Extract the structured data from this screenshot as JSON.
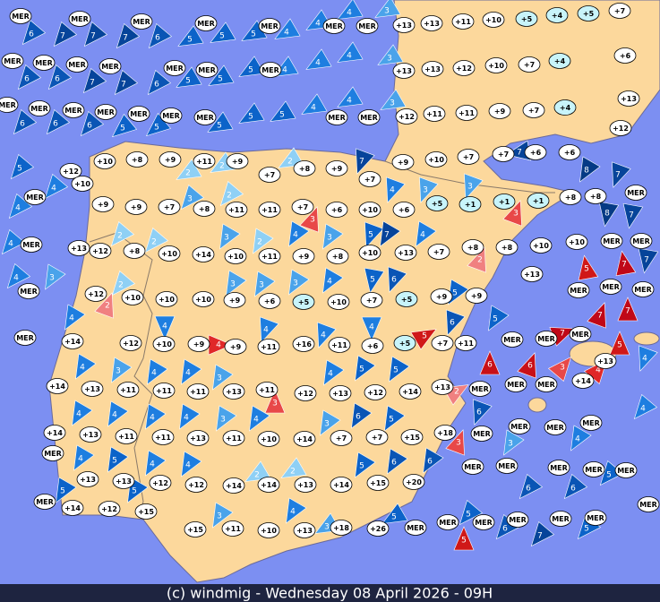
{
  "footer": "(c) windmig - Wednesday 08 April 2026 - 09H",
  "winds": [
    {
      "label": "6",
      "color": "#0a55b5"
    },
    {
      "label": "7",
      "color": "#06449a"
    },
    {
      "label": "7",
      "color": "#06449a"
    },
    {
      "label": "7",
      "color": "#06449a"
    },
    {
      "label": "6",
      "color": "#0a55b5"
    },
    {
      "label": "5",
      "color": "#0c63c9"
    },
    {
      "label": "5",
      "color": "#0c63c9"
    },
    {
      "label": "5",
      "color": "#0c63c9"
    },
    {
      "label": "4",
      "color": "#1e7ee0"
    },
    {
      "label": "4",
      "color": "#1e7ee0"
    },
    {
      "label": "4",
      "color": "#1e7ee0"
    },
    {
      "label": "3",
      "color": "#4aa3ea"
    },
    {
      "label": "6",
      "color": "#0a55b5"
    },
    {
      "label": "6",
      "color": "#0a55b5"
    },
    {
      "label": "7",
      "color": "#06449a"
    },
    {
      "label": "7",
      "color": "#06449a"
    },
    {
      "label": "6",
      "color": "#0a55b5"
    },
    {
      "label": "5",
      "color": "#0c63c9"
    },
    {
      "label": "5",
      "color": "#0c63c9"
    },
    {
      "label": "5",
      "color": "#0c63c9"
    },
    {
      "label": "4",
      "color": "#1e7ee0"
    },
    {
      "label": "4",
      "color": "#1e7ee0"
    },
    {
      "label": "4",
      "color": "#1e7ee0"
    },
    {
      "label": "3",
      "color": "#4aa3ea"
    },
    {
      "label": "6",
      "color": "#0a55b5"
    },
    {
      "label": "6",
      "color": "#0a55b5"
    },
    {
      "label": "6",
      "color": "#0a55b5"
    },
    {
      "label": "5",
      "color": "#0c63c9"
    },
    {
      "label": "5",
      "color": "#0c63c9"
    },
    {
      "label": "5",
      "color": "#0c63c9"
    },
    {
      "label": "5",
      "color": "#0c63c9"
    },
    {
      "label": "5",
      "color": "#0c63c9"
    },
    {
      "label": "4",
      "color": "#1e7ee0"
    },
    {
      "label": "4",
      "color": "#1e7ee0"
    },
    {
      "label": "3",
      "color": "#4aa3ea"
    },
    {
      "label": "5",
      "color": "#0c63c9"
    },
    {
      "label": "4",
      "color": "#1e7ee0"
    },
    {
      "label": "4",
      "color": "#1e7ee0"
    },
    {
      "label": "4",
      "color": "#1e7ee0"
    },
    {
      "label": "4",
      "color": "#1e7ee0"
    },
    {
      "label": "2",
      "color": "#8fd0f5"
    },
    {
      "label": "2",
      "color": "#8fd0f5"
    },
    {
      "label": "2",
      "color": "#8fd0f5"
    },
    {
      "label": "7",
      "color": "#06449a"
    },
    {
      "label": "4",
      "color": "#1e7ee0"
    },
    {
      "label": "3",
      "color": "#4aa3ea"
    },
    {
      "label": "3",
      "color": "#4aa3ea"
    },
    {
      "label": "7",
      "color": "#06449a"
    },
    {
      "label": "8",
      "color": "#053a85"
    },
    {
      "label": "7",
      "color": "#06449a"
    },
    {
      "label": "8",
      "color": "#053a85"
    },
    {
      "label": "7",
      "color": "#06449a"
    },
    {
      "label": "3",
      "color": "#e84848"
    },
    {
      "label": "3",
      "color": "#e84848"
    },
    {
      "label": "3",
      "color": "#4aa3ea"
    },
    {
      "label": "2",
      "color": "#8fd0f5"
    },
    {
      "label": "2",
      "color": "#8fd0f5"
    },
    {
      "label": "2",
      "color": "#8fd0f5"
    },
    {
      "label": "3",
      "color": "#4aa3ea"
    },
    {
      "label": "2",
      "color": "#8fd0f5"
    },
    {
      "label": "4",
      "color": "#1e7ee0"
    },
    {
      "label": "3",
      "color": "#4aa3ea"
    },
    {
      "label": "5",
      "color": "#0c63c9"
    },
    {
      "label": "7",
      "color": "#06449a"
    },
    {
      "label": "4",
      "color": "#1e7ee0"
    },
    {
      "label": "2",
      "color": "#f08080"
    },
    {
      "label": "7",
      "color": "#06449a"
    },
    {
      "label": "7",
      "color": "#c00818"
    },
    {
      "label": "5",
      "color": "#d01818"
    },
    {
      "label": "3",
      "color": "#4aa3ea"
    },
    {
      "label": "2",
      "color": "#f08080"
    },
    {
      "label": "2",
      "color": "#8fd0f5"
    },
    {
      "label": "3",
      "color": "#4aa3ea"
    },
    {
      "label": "3",
      "color": "#4aa3ea"
    },
    {
      "label": "3",
      "color": "#4aa3ea"
    },
    {
      "label": "4",
      "color": "#1e7ee0"
    },
    {
      "label": "5",
      "color": "#0c63c9"
    },
    {
      "label": "6",
      "color": "#0a55b5"
    },
    {
      "label": "5",
      "color": "#0c63c9"
    },
    {
      "label": "5",
      "color": "#0c63c9"
    },
    {
      "label": "4",
      "color": "#1e7ee0"
    },
    {
      "label": "4",
      "color": "#1e7ee0"
    },
    {
      "label": "4",
      "color": "#e02828"
    },
    {
      "label": "4",
      "color": "#1e7ee0"
    },
    {
      "label": "4",
      "color": "#1e7ee0"
    },
    {
      "label": "4",
      "color": "#1e7ee0"
    },
    {
      "label": "5",
      "color": "#d01818"
    },
    {
      "label": "6",
      "color": "#0a55b5"
    },
    {
      "label": "7",
      "color": "#c00818"
    },
    {
      "label": "7",
      "color": "#c00818"
    },
    {
      "label": "7",
      "color": "#c00818"
    },
    {
      "label": "5",
      "color": "#d01818"
    },
    {
      "label": "4",
      "color": "#1e7ee0"
    },
    {
      "label": "6",
      "color": "#c81018"
    },
    {
      "label": "6",
      "color": "#c81018"
    },
    {
      "label": "3",
      "color": "#e84848"
    },
    {
      "label": "4",
      "color": "#e02828"
    },
    {
      "label": "2",
      "color": "#f08080"
    },
    {
      "label": "4",
      "color": "#1e7ee0"
    },
    {
      "label": "3",
      "color": "#4aa3ea"
    },
    {
      "label": "4",
      "color": "#1e7ee0"
    },
    {
      "label": "4",
      "color": "#1e7ee0"
    },
    {
      "label": "3",
      "color": "#4aa3ea"
    },
    {
      "label": "3",
      "color": "#e84848"
    },
    {
      "label": "4",
      "color": "#1e7ee0"
    },
    {
      "label": "5",
      "color": "#0c63c9"
    },
    {
      "label": "5",
      "color": "#0c63c9"
    },
    {
      "label": "6",
      "color": "#0a55b5"
    },
    {
      "label": "4",
      "color": "#1e7ee0"
    },
    {
      "label": "4",
      "color": "#1e7ee0"
    },
    {
      "label": "4",
      "color": "#1e7ee0"
    },
    {
      "label": "4",
      "color": "#1e7ee0"
    },
    {
      "label": "3",
      "color": "#4aa3ea"
    },
    {
      "label": "4",
      "color": "#1e7ee0"
    },
    {
      "label": "3",
      "color": "#4aa3ea"
    },
    {
      "label": "6",
      "color": "#0a55b5"
    },
    {
      "label": "5",
      "color": "#0c63c9"
    },
    {
      "label": "3",
      "color": "#e84848"
    },
    {
      "label": "3",
      "color": "#4aa3ea"
    },
    {
      "label": "4",
      "color": "#1e7ee0"
    },
    {
      "label": "4",
      "color": "#1e7ee0"
    },
    {
      "label": "4",
      "color": "#1e7ee0"
    },
    {
      "label": "5",
      "color": "#0c63c9"
    },
    {
      "label": "4",
      "color": "#1e7ee0"
    },
    {
      "label": "4",
      "color": "#1e7ee0"
    },
    {
      "label": "2",
      "color": "#8fd0f5"
    },
    {
      "label": "2",
      "color": "#8fd0f5"
    },
    {
      "label": "5",
      "color": "#0c63c9"
    },
    {
      "label": "6",
      "color": "#0a55b5"
    },
    {
      "label": "6",
      "color": "#0a55b5"
    },
    {
      "label": "6",
      "color": "#0a55b5"
    },
    {
      "label": "6",
      "color": "#0a55b5"
    },
    {
      "label": "5",
      "color": "#0c63c9"
    },
    {
      "label": "5",
      "color": "#0c63c9"
    },
    {
      "label": "5",
      "color": "#0c63c9"
    },
    {
      "label": "3",
      "color": "#4aa3ea"
    },
    {
      "label": "4",
      "color": "#1e7ee0"
    },
    {
      "label": "3",
      "color": "#4aa3ea"
    },
    {
      "label": "5",
      "color": "#0c63c9"
    },
    {
      "label": "5",
      "color": "#0c63c9"
    },
    {
      "label": "5",
      "color": "#d01818"
    },
    {
      "label": "6",
      "color": "#0a55b5"
    },
    {
      "label": "7",
      "color": "#06449a"
    },
    {
      "label": "5",
      "color": "#0c63c9"
    }
  ],
  "stations": [
    {
      "label": "MER"
    },
    {
      "label": "MER"
    },
    {
      "label": "MER"
    },
    {
      "label": "MER"
    },
    {
      "label": "MER"
    },
    {
      "label": "MER"
    },
    {
      "label": "MER"
    },
    {
      "label": "+13"
    },
    {
      "label": "+13"
    },
    {
      "label": "+11"
    },
    {
      "label": "+10"
    },
    {
      "label": "+5",
      "color": "#c8f4fa"
    },
    {
      "label": "+4",
      "color": "#c8f4fa"
    },
    {
      "label": "+5",
      "color": "#c8f4fa"
    },
    {
      "label": "+7"
    },
    {
      "label": "MER"
    },
    {
      "label": "MER"
    },
    {
      "label": "MER"
    },
    {
      "label": "MER"
    },
    {
      "label": "MER"
    },
    {
      "label": "MER"
    },
    {
      "label": "MER"
    },
    {
      "label": "+13"
    },
    {
      "label": "+13"
    },
    {
      "label": "+12"
    },
    {
      "label": "+10"
    },
    {
      "label": "+7"
    },
    {
      "label": "+4",
      "color": "#c8f4fa"
    },
    {
      "label": "+6"
    },
    {
      "label": "MER"
    },
    {
      "label": "MER"
    },
    {
      "label": "MER"
    },
    {
      "label": "MER"
    },
    {
      "label": "MER"
    },
    {
      "label": "MER"
    },
    {
      "label": "MER"
    },
    {
      "label": "MER"
    },
    {
      "label": "MER"
    },
    {
      "label": "+12"
    },
    {
      "label": "+11"
    },
    {
      "label": "+11"
    },
    {
      "label": "+9"
    },
    {
      "label": "+7"
    },
    {
      "label": "+4",
      "color": "#c8f4fa"
    },
    {
      "label": "+13"
    },
    {
      "label": "+12"
    },
    {
      "label": "+10"
    },
    {
      "label": "+8"
    },
    {
      "label": "+9"
    },
    {
      "label": "+11"
    },
    {
      "label": "+9"
    },
    {
      "label": "+12"
    },
    {
      "label": "+10"
    },
    {
      "label": "+7"
    },
    {
      "label": "+8"
    },
    {
      "label": "+9"
    },
    {
      "label": "+7"
    },
    {
      "label": "+9"
    },
    {
      "label": "+10"
    },
    {
      "label": "+7"
    },
    {
      "label": "+7"
    },
    {
      "label": "+6"
    },
    {
      "label": "+6"
    },
    {
      "label": "+8"
    },
    {
      "label": "MER"
    },
    {
      "label": "+9"
    },
    {
      "label": "+9"
    },
    {
      "label": "+7"
    },
    {
      "label": "+8"
    },
    {
      "label": "+11"
    },
    {
      "label": "+11"
    },
    {
      "label": "+7"
    },
    {
      "label": "+6"
    },
    {
      "label": "+10"
    },
    {
      "label": "+6"
    },
    {
      "label": "+5",
      "color": "#c8f4fa"
    },
    {
      "label": "+1",
      "color": "#c8f4fa"
    },
    {
      "label": "+1",
      "color": "#c8f4fa"
    },
    {
      "label": "+1",
      "color": "#c8f4fa"
    },
    {
      "label": "+8"
    },
    {
      "label": "MER"
    },
    {
      "label": "MER"
    },
    {
      "label": "+13"
    },
    {
      "label": "+12"
    },
    {
      "label": "+8"
    },
    {
      "label": "+10"
    },
    {
      "label": "+14"
    },
    {
      "label": "+10"
    },
    {
      "label": "+11"
    },
    {
      "label": "+9"
    },
    {
      "label": "+8"
    },
    {
      "label": "+10"
    },
    {
      "label": "+13"
    },
    {
      "label": "+7"
    },
    {
      "label": "+8"
    },
    {
      "label": "+8"
    },
    {
      "label": "+10"
    },
    {
      "label": "+10"
    },
    {
      "label": "MER"
    },
    {
      "label": "MER"
    },
    {
      "label": "MER"
    },
    {
      "label": "+12"
    },
    {
      "label": "+10"
    },
    {
      "label": "+10"
    },
    {
      "label": "+10"
    },
    {
      "label": "+9"
    },
    {
      "label": "+6"
    },
    {
      "label": "+5",
      "color": "#c8f4fa"
    },
    {
      "label": "+10"
    },
    {
      "label": "+7"
    },
    {
      "label": "+5",
      "color": "#c8f4fa"
    },
    {
      "label": "+9"
    },
    {
      "label": "+9"
    },
    {
      "label": "+13"
    },
    {
      "label": "MER"
    },
    {
      "label": "MER"
    },
    {
      "label": "MER"
    },
    {
      "label": "MER"
    },
    {
      "label": "+14"
    },
    {
      "label": "+12"
    },
    {
      "label": "+10"
    },
    {
      "label": "+9"
    },
    {
      "label": "+9"
    },
    {
      "label": "+11"
    },
    {
      "label": "+16"
    },
    {
      "label": "+11"
    },
    {
      "label": "+6"
    },
    {
      "label": "+5",
      "color": "#c8f4fa"
    },
    {
      "label": "+7"
    },
    {
      "label": "+11"
    },
    {
      "label": "MER"
    },
    {
      "label": "MER"
    },
    {
      "label": "MER"
    },
    {
      "label": "+13"
    },
    {
      "label": "+14"
    },
    {
      "label": "+14"
    },
    {
      "label": "+13"
    },
    {
      "label": "+11"
    },
    {
      "label": "+11"
    },
    {
      "label": "+11"
    },
    {
      "label": "+13"
    },
    {
      "label": "+11"
    },
    {
      "label": "+12"
    },
    {
      "label": "+13"
    },
    {
      "label": "+12"
    },
    {
      "label": "+14"
    },
    {
      "label": "+13"
    },
    {
      "label": "MER"
    },
    {
      "label": "MER"
    },
    {
      "label": "MER"
    },
    {
      "label": "+14"
    },
    {
      "label": "+13"
    },
    {
      "label": "+11"
    },
    {
      "label": "+11"
    },
    {
      "label": "+13"
    },
    {
      "label": "+11"
    },
    {
      "label": "+10"
    },
    {
      "label": "+14"
    },
    {
      "label": "+7"
    },
    {
      "label": "+7"
    },
    {
      "label": "+15"
    },
    {
      "label": "+18"
    },
    {
      "label": "MER"
    },
    {
      "label": "MER"
    },
    {
      "label": "MER"
    },
    {
      "label": "MER"
    },
    {
      "label": "MER"
    },
    {
      "label": "+13"
    },
    {
      "label": "+13"
    },
    {
      "label": "+12"
    },
    {
      "label": "+12"
    },
    {
      "label": "+14"
    },
    {
      "label": "+14"
    },
    {
      "label": "+13"
    },
    {
      "label": "+14"
    },
    {
      "label": "+15"
    },
    {
      "label": "+20"
    },
    {
      "label": "MER"
    },
    {
      "label": "MER"
    },
    {
      "label": "MER"
    },
    {
      "label": "MER"
    },
    {
      "label": "MER"
    },
    {
      "label": "MER"
    },
    {
      "label": "+14"
    },
    {
      "label": "+12"
    },
    {
      "label": "+15"
    },
    {
      "label": "+15"
    },
    {
      "label": "+11"
    },
    {
      "label": "+10"
    },
    {
      "label": "+13"
    },
    {
      "label": "+18"
    },
    {
      "label": "+26"
    },
    {
      "label": "MER"
    },
    {
      "label": "MER"
    },
    {
      "label": "MER"
    },
    {
      "label": "MER"
    },
    {
      "label": "MER"
    },
    {
      "label": "MER"
    },
    {
      "label": "MER"
    }
  ]
}
